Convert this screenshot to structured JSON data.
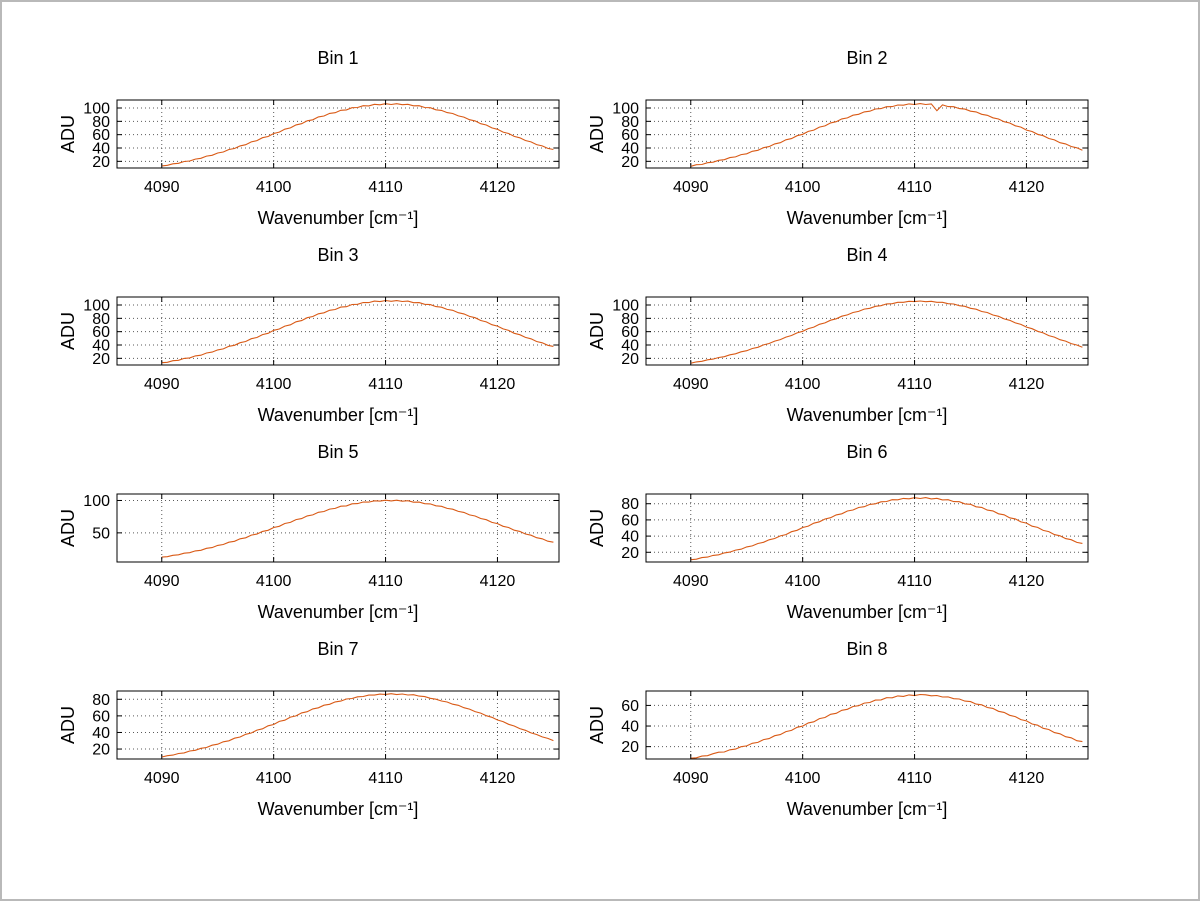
{
  "figure": {
    "background": "#ffffff",
    "frame_color": "#b9b9b9",
    "line_color": "#d95a16",
    "grid_color": "#5a5a5a",
    "axis_color": "#000000",
    "grid": true,
    "xlabel": "Wavenumber [cm⁻¹]",
    "ylabel": "ADU",
    "x_ticks": [
      4090,
      4100,
      4110,
      4120
    ],
    "xlim": [
      4086,
      4125.5
    ]
  },
  "chart_data": [
    {
      "type": "line",
      "title": "Bin 1",
      "x_start": 4090,
      "x_step": 0.5,
      "x_end": 4125,
      "ylim": [
        10,
        112
      ],
      "y_ticks": [
        20,
        40,
        60,
        80,
        100
      ],
      "values": [
        13.2,
        14.1,
        16.3,
        17.1,
        19.8,
        20.5,
        23.4,
        24.6,
        27.9,
        29.1,
        32.5,
        34.0,
        37.8,
        39.3,
        43.2,
        45.0,
        49.2,
        51.1,
        55.4,
        57.3,
        61.8,
        63.8,
        68.2,
        70.1,
        74.6,
        76.4,
        80.8,
        82.3,
        86.6,
        88.0,
        91.9,
        93.0,
        96.6,
        97.2,
        100.5,
        100.8,
        103.5,
        103.2,
        105.6,
        104.8,
        106.5,
        105.3,
        106.4,
        104.9,
        105.5,
        103.3,
        103.4,
        100.7,
        100.4,
        97.3,
        96.4,
        93.1,
        91.8,
        88.1,
        86.4,
        82.5,
        80.7,
        76.5,
        74.5,
        70.2,
        68.1,
        63.9,
        61.7,
        57.4,
        55.3,
        51.2,
        49.1,
        45.1,
        43.1,
        39.4,
        37.7
      ]
    },
    {
      "type": "line",
      "title": "Bin 2",
      "x_start": 4090,
      "x_step": 0.5,
      "x_end": 4125,
      "ylim": [
        10,
        112
      ],
      "y_ticks": [
        20,
        40,
        60,
        80,
        100
      ],
      "values": [
        12.5,
        14.9,
        15.3,
        18.0,
        18.7,
        21.6,
        22.4,
        25.6,
        26.7,
        30.1,
        31.3,
        35.0,
        36.5,
        40.4,
        42.1,
        46.2,
        48.0,
        52.3,
        54.1,
        58.5,
        60.5,
        64.9,
        66.9,
        71.4,
        73.2,
        77.6,
        79.4,
        83.6,
        85.2,
        89.2,
        90.5,
        94.2,
        95.2,
        98.5,
        99.1,
        102.0,
        102.1,
        104.5,
        104.2,
        106.1,
        105.3,
        106.6,
        105.2,
        106.1,
        96.0,
        104.6,
        102.1,
        102.0,
        99.1,
        98.4,
        95.2,
        94.1,
        90.6,
        89.1,
        85.3,
        83.5,
        79.5,
        77.5,
        73.3,
        71.3,
        66.9,
        64.8,
        60.5,
        58.4,
        54.2,
        52.2,
        48.0,
        46.1,
        42.2,
        40.3,
        36.6
      ]
    },
    {
      "type": "line",
      "title": "Bin 3",
      "x_start": 4090,
      "x_step": 0.5,
      "x_end": 4125,
      "ylim": [
        10,
        112
      ],
      "y_ticks": [
        20,
        40,
        60,
        80,
        100
      ],
      "values": [
        13.5,
        14.0,
        16.5,
        17.0,
        19.9,
        20.6,
        23.6,
        24.7,
        28.0,
        29.3,
        32.7,
        34.1,
        38.0,
        39.5,
        43.4,
        45.2,
        49.4,
        51.3,
        55.6,
        57.5,
        62.0,
        64.0,
        68.4,
        70.3,
        74.8,
        76.6,
        81.0,
        82.8,
        86.8,
        88.3,
        92.1,
        93.3,
        96.8,
        97.5,
        100.7,
        101.1,
        103.7,
        103.6,
        105.8,
        105.1,
        106.7,
        105.6,
        106.6,
        105.2,
        105.8,
        103.5,
        103.6,
        101.0,
        100.6,
        97.6,
        96.7,
        93.4,
        92.0,
        88.4,
        86.7,
        82.9,
        80.9,
        76.7,
        74.7,
        70.4,
        68.3,
        64.1,
        61.9,
        57.6,
        55.5,
        51.4,
        49.3,
        45.3,
        43.3,
        39.6,
        37.9
      ]
    },
    {
      "type": "line",
      "title": "Bin 4",
      "x_start": 4090,
      "x_step": 0.5,
      "x_end": 4125,
      "ylim": [
        10,
        112
      ],
      "y_ticks": [
        20,
        40,
        60,
        80,
        100
      ],
      "values": [
        12.7,
        14.6,
        15.5,
        17.8,
        18.8,
        21.3,
        22.5,
        25.3,
        26.8,
        29.8,
        31.5,
        34.7,
        36.6,
        40.1,
        42.2,
        45.9,
        48.1,
        51.9,
        54.2,
        58.2,
        60.6,
        64.6,
        66.9,
        71.0,
        73.2,
        77.2,
        79.3,
        83.2,
        85.1,
        88.8,
        90.4,
        93.8,
        95.1,
        98.1,
        99.0,
        101.6,
        102.0,
        104.0,
        104.1,
        105.6,
        105.1,
        106.0,
        104.9,
        105.5,
        104.0,
        104.1,
        101.9,
        101.5,
        98.9,
        98.0,
        95.0,
        93.7,
        90.3,
        88.7,
        85.0,
        83.1,
        79.2,
        77.1,
        73.1,
        70.9,
        66.8,
        64.5,
        60.5,
        58.1,
        54.1,
        51.8,
        47.9,
        45.8,
        42.1,
        40.0,
        36.5
      ]
    },
    {
      "type": "line",
      "title": "Bin 5",
      "x_start": 4090,
      "x_step": 0.5,
      "x_end": 4125,
      "ylim": [
        5,
        110
      ],
      "y_ticks": [
        50,
        100
      ],
      "values": [
        12.5,
        13.2,
        15.4,
        16.1,
        18.6,
        19.4,
        22.2,
        23.1,
        26.2,
        27.3,
        30.7,
        32.0,
        35.6,
        37.0,
        40.9,
        42.4,
        46.5,
        48.1,
        52.3,
        54.0,
        58.3,
        60.1,
        64.4,
        66.1,
        70.4,
        72.0,
        76.2,
        77.7,
        81.7,
        83.0,
        86.7,
        87.7,
        91.1,
        91.7,
        94.8,
        95.1,
        97.6,
        97.5,
        99.5,
        99.0,
        100.4,
        99.4,
        100.5,
        98.9,
        99.6,
        97.4,
        97.5,
        95.0,
        94.7,
        91.8,
        91.0,
        87.8,
        86.6,
        83.1,
        81.6,
        77.8,
        76.1,
        72.1,
        70.3,
        66.2,
        64.3,
        60.2,
        58.2,
        54.1,
        52.2,
        48.2,
        46.4,
        42.5,
        40.8,
        37.1,
        35.5
      ]
    },
    {
      "type": "line",
      "title": "Bin 6",
      "x_start": 4090,
      "x_step": 0.5,
      "x_end": 4125,
      "ylim": [
        8,
        92
      ],
      "y_ticks": [
        20,
        40,
        60,
        80
      ],
      "values": [
        10.9,
        11.5,
        13.4,
        14.0,
        16.1,
        16.9,
        19.2,
        20.2,
        22.7,
        23.8,
        26.6,
        27.9,
        30.9,
        32.3,
        35.4,
        37.0,
        40.3,
        41.9,
        45.4,
        47.1,
        50.6,
        52.3,
        55.9,
        57.6,
        61.1,
        62.7,
        66.2,
        67.6,
        71.0,
        72.2,
        75.3,
        76.3,
        79.2,
        79.9,
        82.4,
        82.7,
        84.9,
        84.8,
        86.6,
        86.1,
        87.4,
        86.5,
        87.5,
        86.0,
        86.7,
        84.7,
        84.9,
        82.6,
        82.5,
        79.8,
        79.3,
        76.2,
        75.4,
        72.1,
        71.1,
        67.5,
        66.3,
        62.6,
        61.2,
        57.5,
        56.0,
        52.2,
        50.7,
        47.0,
        45.5,
        41.8,
        40.4,
        36.9,
        35.5,
        32.2,
        31.0
      ]
    },
    {
      "type": "line",
      "title": "Bin 7",
      "x_start": 4090,
      "x_step": 0.5,
      "x_end": 4125,
      "ylim": [
        8,
        90
      ],
      "y_ticks": [
        20,
        40,
        60,
        80
      ],
      "values": [
        10.4,
        12.0,
        12.7,
        14.6,
        15.4,
        17.6,
        18.5,
        20.9,
        21.9,
        24.6,
        25.8,
        28.7,
        30.0,
        33.1,
        34.5,
        37.8,
        39.3,
        42.8,
        44.4,
        48.0,
        49.6,
        53.3,
        54.8,
        58.5,
        60.0,
        63.6,
        65.0,
        68.4,
        69.7,
        72.9,
        74.0,
        76.9,
        77.8,
        80.3,
        81.0,
        83.0,
        83.4,
        85.0,
        85.1,
        86.3,
        85.9,
        86.8,
        85.7,
        86.4,
        85.2,
        85.5,
        83.9,
        83.2,
        81.2,
        80.1,
        77.9,
        76.7,
        74.1,
        72.7,
        69.9,
        68.2,
        65.2,
        63.4,
        60.2,
        58.3,
        55.0,
        53.1,
        49.8,
        47.8,
        44.6,
        42.6,
        39.5,
        37.6,
        34.7,
        32.9,
        30.2
      ]
    },
    {
      "type": "line",
      "title": "Bin 8",
      "x_start": 4090,
      "x_step": 0.5,
      "x_end": 4125,
      "ylim": [
        8,
        74
      ],
      "y_ticks": [
        20,
        40,
        60
      ],
      "values": [
        8.8,
        9.2,
        10.8,
        11.2,
        13.1,
        14.6,
        14.8,
        16.9,
        17.6,
        19.9,
        20.7,
        23.2,
        24.1,
        26.8,
        27.8,
        30.6,
        31.7,
        34.6,
        35.8,
        38.8,
        39.9,
        43.0,
        44.1,
        47.2,
        48.3,
        51.4,
        52.4,
        55.3,
        56.2,
        59.0,
        59.7,
        62.3,
        62.8,
        65.2,
        65.4,
        67.5,
        67.4,
        69.2,
        68.8,
        70.2,
        69.5,
        70.6,
        70.3,
        69.3,
        69.6,
        68.2,
        68.3,
        66.5,
        66.2,
        64.2,
        63.7,
        61.3,
        60.6,
        58.0,
        57.1,
        54.3,
        53.2,
        50.4,
        49.2,
        46.2,
        45.0,
        42.0,
        40.8,
        37.8,
        36.6,
        33.6,
        32.5,
        29.6,
        28.6,
        25.8,
        24.9
      ]
    }
  ]
}
